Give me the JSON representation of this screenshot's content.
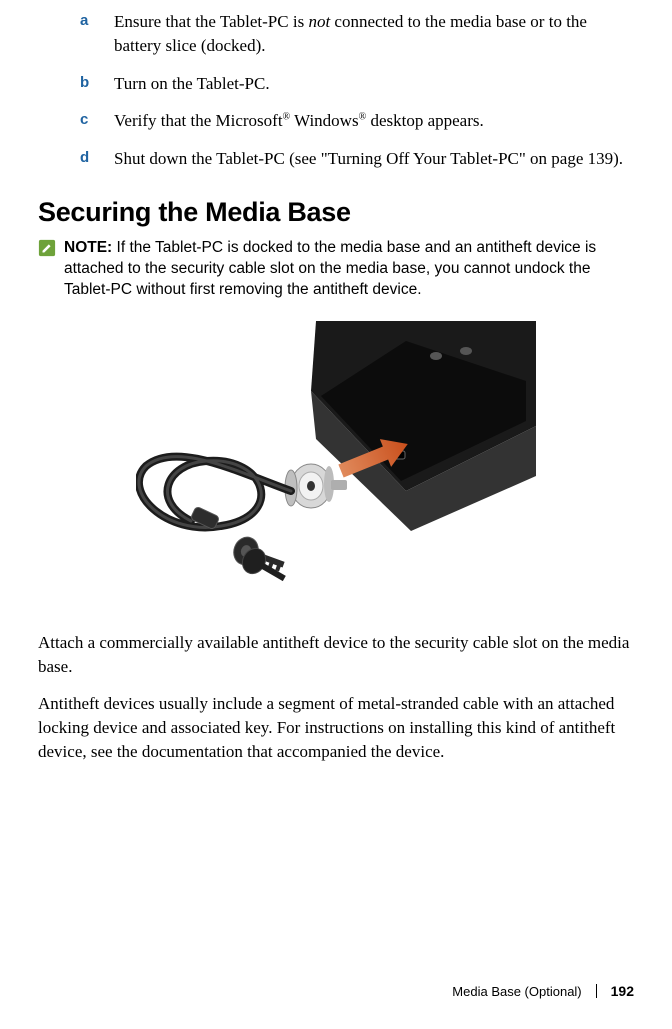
{
  "steps": [
    {
      "m": "a",
      "html": "Ensure that the Tablet-PC is <span class=\"italic\">not</span> connected to the media base or to the battery slice (docked)."
    },
    {
      "m": "b",
      "html": "Turn on the Tablet-PC."
    },
    {
      "m": "c",
      "html": "Verify that the Microsoft<sup>®</sup> Windows<sup>®</sup> desktop appears."
    },
    {
      "m": "d",
      "html": "Shut down the Tablet-PC (see \"Turning Off Your Tablet-PC\" on page 139)."
    }
  ],
  "heading": "Securing the Media Base",
  "note": {
    "label": "NOTE:",
    "text": " If the Tablet-PC is docked to the media base and an antitheft device is attached to the security cable slot on the media base, you cannot undock the Tablet-PC without first removing the antitheft device.",
    "icon_colors": {
      "fill": "#6ea23a",
      "pencil": "#ffffff"
    }
  },
  "figure": {
    "arrow_color": "#d96a3b",
    "device_color": "#2b2b2b",
    "chrome_color": "#c7c7c7",
    "cable_color": "#222222"
  },
  "paragraphs": [
    "Attach a commercially available antitheft device to the security cable slot on the media base.",
    "Antitheft devices usually include a segment of metal-stranded cable with an attached locking device and associated key. For instructions on installing this kind of antitheft device, see the documentation that accompanied the device."
  ],
  "footer": {
    "section": "Media Base (Optional)",
    "page": "192"
  }
}
